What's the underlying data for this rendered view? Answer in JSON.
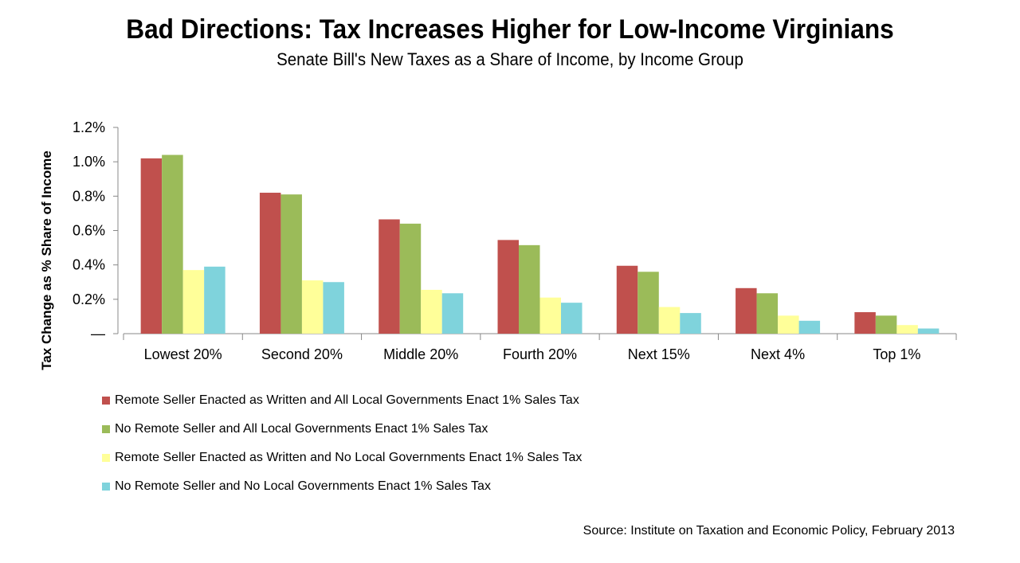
{
  "chart_data": {
    "type": "bar",
    "title": "Bad Directions: Tax Increases Higher for Low-Income Virginians",
    "subtitle": "Senate Bill's New Taxes as a Share of Income, by Income Group",
    "ylabel": "Tax Change as % Share of Income",
    "xlabel": "",
    "ylim": [
      0,
      1.2
    ],
    "yticks": [
      0,
      0.2,
      0.4,
      0.6,
      0.8,
      1.0,
      1.2
    ],
    "ytick_labels": [
      "—",
      "0.2%",
      "0.4%",
      "0.6%",
      "0.8%",
      "1.0%",
      "1.2%"
    ],
    "grid": false,
    "legend_position": "bottom-left",
    "categories": [
      "Lowest 20%",
      "Second 20%",
      "Middle 20%",
      "Fourth 20%",
      "Next 15%",
      "Next 4%",
      "Top 1%"
    ],
    "series": [
      {
        "name": "Remote Seller Enacted as Written and All Local Governments Enact 1% Sales Tax",
        "color": "#c0504d",
        "values": [
          1.02,
          0.82,
          0.665,
          0.545,
          0.395,
          0.265,
          0.125
        ]
      },
      {
        "name": "No Remote Seller and All Local Governments Enact 1% Sales Tax",
        "color": "#9bbb59",
        "values": [
          1.04,
          0.81,
          0.64,
          0.515,
          0.36,
          0.235,
          0.105
        ]
      },
      {
        "name": "Remote Seller Enacted as Written and No Local Governments Enact 1% Sales Tax",
        "color": "#ffff99",
        "values": [
          0.37,
          0.31,
          0.255,
          0.21,
          0.155,
          0.105,
          0.05
        ]
      },
      {
        "name": "No Remote Seller and No Local Governments Enact 1% Sales Tax",
        "color": "#7fd3dc",
        "values": [
          0.39,
          0.3,
          0.235,
          0.18,
          0.12,
          0.075,
          0.03
        ]
      }
    ]
  },
  "source": "Source: Institute on Taxation and Economic Policy, February 2013"
}
